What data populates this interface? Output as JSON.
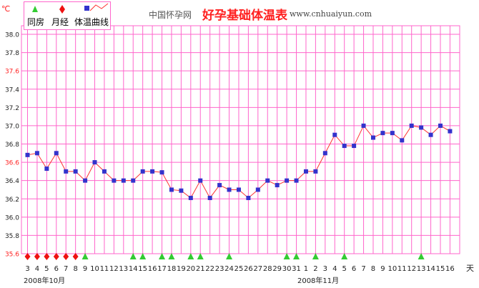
{
  "header": {
    "site_name": "中国怀孕网",
    "title": "好孕基础体温表",
    "url": "www.cnhuaiyun.com"
  },
  "legend": {
    "intercourse_label": "同房",
    "period_label": "月经",
    "temp_label": "体温曲线"
  },
  "colors": {
    "grid": "#ff66cc",
    "line": "#ff3333",
    "point": "#3333cc",
    "intercourse": "#33cc33",
    "period": "#ee1111",
    "highlight_tick": "#ff2222"
  },
  "chart_data": {
    "type": "line",
    "unit_label": "℃",
    "x_unit_label": "天",
    "month_labels": [
      "2008年10月",
      "2008年11月"
    ],
    "ylim": [
      35.6,
      38.0
    ],
    "y_ticks": [
      "35.6",
      "35.8",
      "36.0",
      "36.2",
      "36.4",
      "36.6",
      "36.8",
      "37.0",
      "37.2",
      "37.4",
      "37.6",
      "37.8",
      "38.0"
    ],
    "highlight_ticks": [
      "35.6",
      "36.6",
      "37.6"
    ],
    "categories": [
      "3",
      "4",
      "5",
      "6",
      "7",
      "8",
      "9",
      "10",
      "11",
      "12",
      "13",
      "14",
      "15",
      "16",
      "17",
      "18",
      "19",
      "20",
      "21",
      "22",
      "23",
      "24",
      "25",
      "26",
      "27",
      "28",
      "29",
      "30",
      "31",
      "1",
      "2",
      "3",
      "4",
      "5",
      "6",
      "7",
      "8",
      "9",
      "10",
      "11",
      "12",
      "13",
      "14",
      "15",
      "16"
    ],
    "series": [
      {
        "values": [
          36.68,
          36.7,
          36.53,
          36.7,
          36.5,
          36.5,
          36.4,
          36.6,
          36.5,
          36.4,
          36.4,
          36.4,
          36.5,
          36.5,
          36.49,
          36.3,
          36.29,
          36.21,
          36.4,
          36.21,
          36.35,
          36.3,
          36.3,
          36.21,
          36.3,
          36.4,
          36.35,
          36.4,
          36.4,
          36.5,
          36.5,
          36.7,
          36.9,
          36.78,
          36.78,
          37.0,
          36.87,
          36.92,
          36.92,
          36.84,
          37.0,
          36.98,
          36.9,
          37.0,
          36.94
        ]
      }
    ],
    "period_days": [
      "3",
      "4",
      "5",
      "6",
      "7",
      "8"
    ],
    "intercourse_days": [
      "9",
      "14",
      "15",
      "17",
      "18",
      "20",
      "21",
      "24",
      "30",
      "31",
      "2",
      "5",
      "13"
    ]
  }
}
